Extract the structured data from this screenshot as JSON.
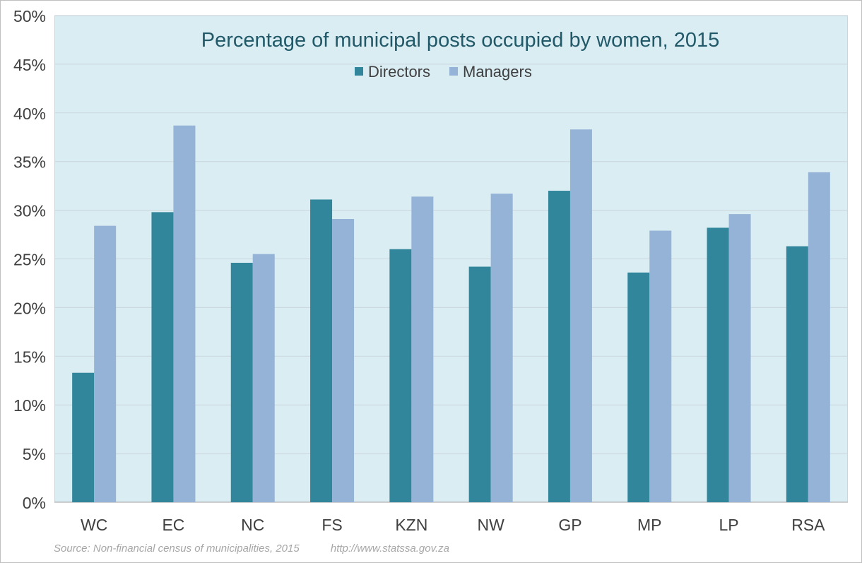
{
  "chart_data": {
    "type": "bar",
    "title": "Percentage of municipal posts occupied by women, 2015",
    "categories": [
      "WC",
      "EC",
      "NC",
      "FS",
      "KZN",
      "NW",
      "GP",
      "MP",
      "LP",
      "RSA"
    ],
    "series": [
      {
        "name": "Directors",
        "color": "#31869b",
        "values": [
          13.3,
          29.8,
          24.6,
          31.1,
          26.0,
          24.2,
          32.0,
          23.6,
          28.2,
          26.3
        ]
      },
      {
        "name": "Managers",
        "color": "#95b3d7",
        "values": [
          28.4,
          38.7,
          25.5,
          29.1,
          31.4,
          31.7,
          38.3,
          27.9,
          29.6,
          33.9
        ]
      }
    ],
    "ylim": [
      0,
      50
    ],
    "yticks": [
      0,
      5,
      10,
      15,
      20,
      25,
      30,
      35,
      40,
      45,
      50
    ],
    "ytick_labels": [
      "0%",
      "5%",
      "10%",
      "15%",
      "20%",
      "25%",
      "30%",
      "35%",
      "40%",
      "45%",
      "50%"
    ],
    "xlabel": "",
    "ylabel": "",
    "grid": true,
    "legend_position": "top-center",
    "plot_background": "#daedf3"
  },
  "footer": {
    "source": "Source: Non-financial census of municipalities, 2015",
    "url": "http://www.statssa.gov.za"
  }
}
